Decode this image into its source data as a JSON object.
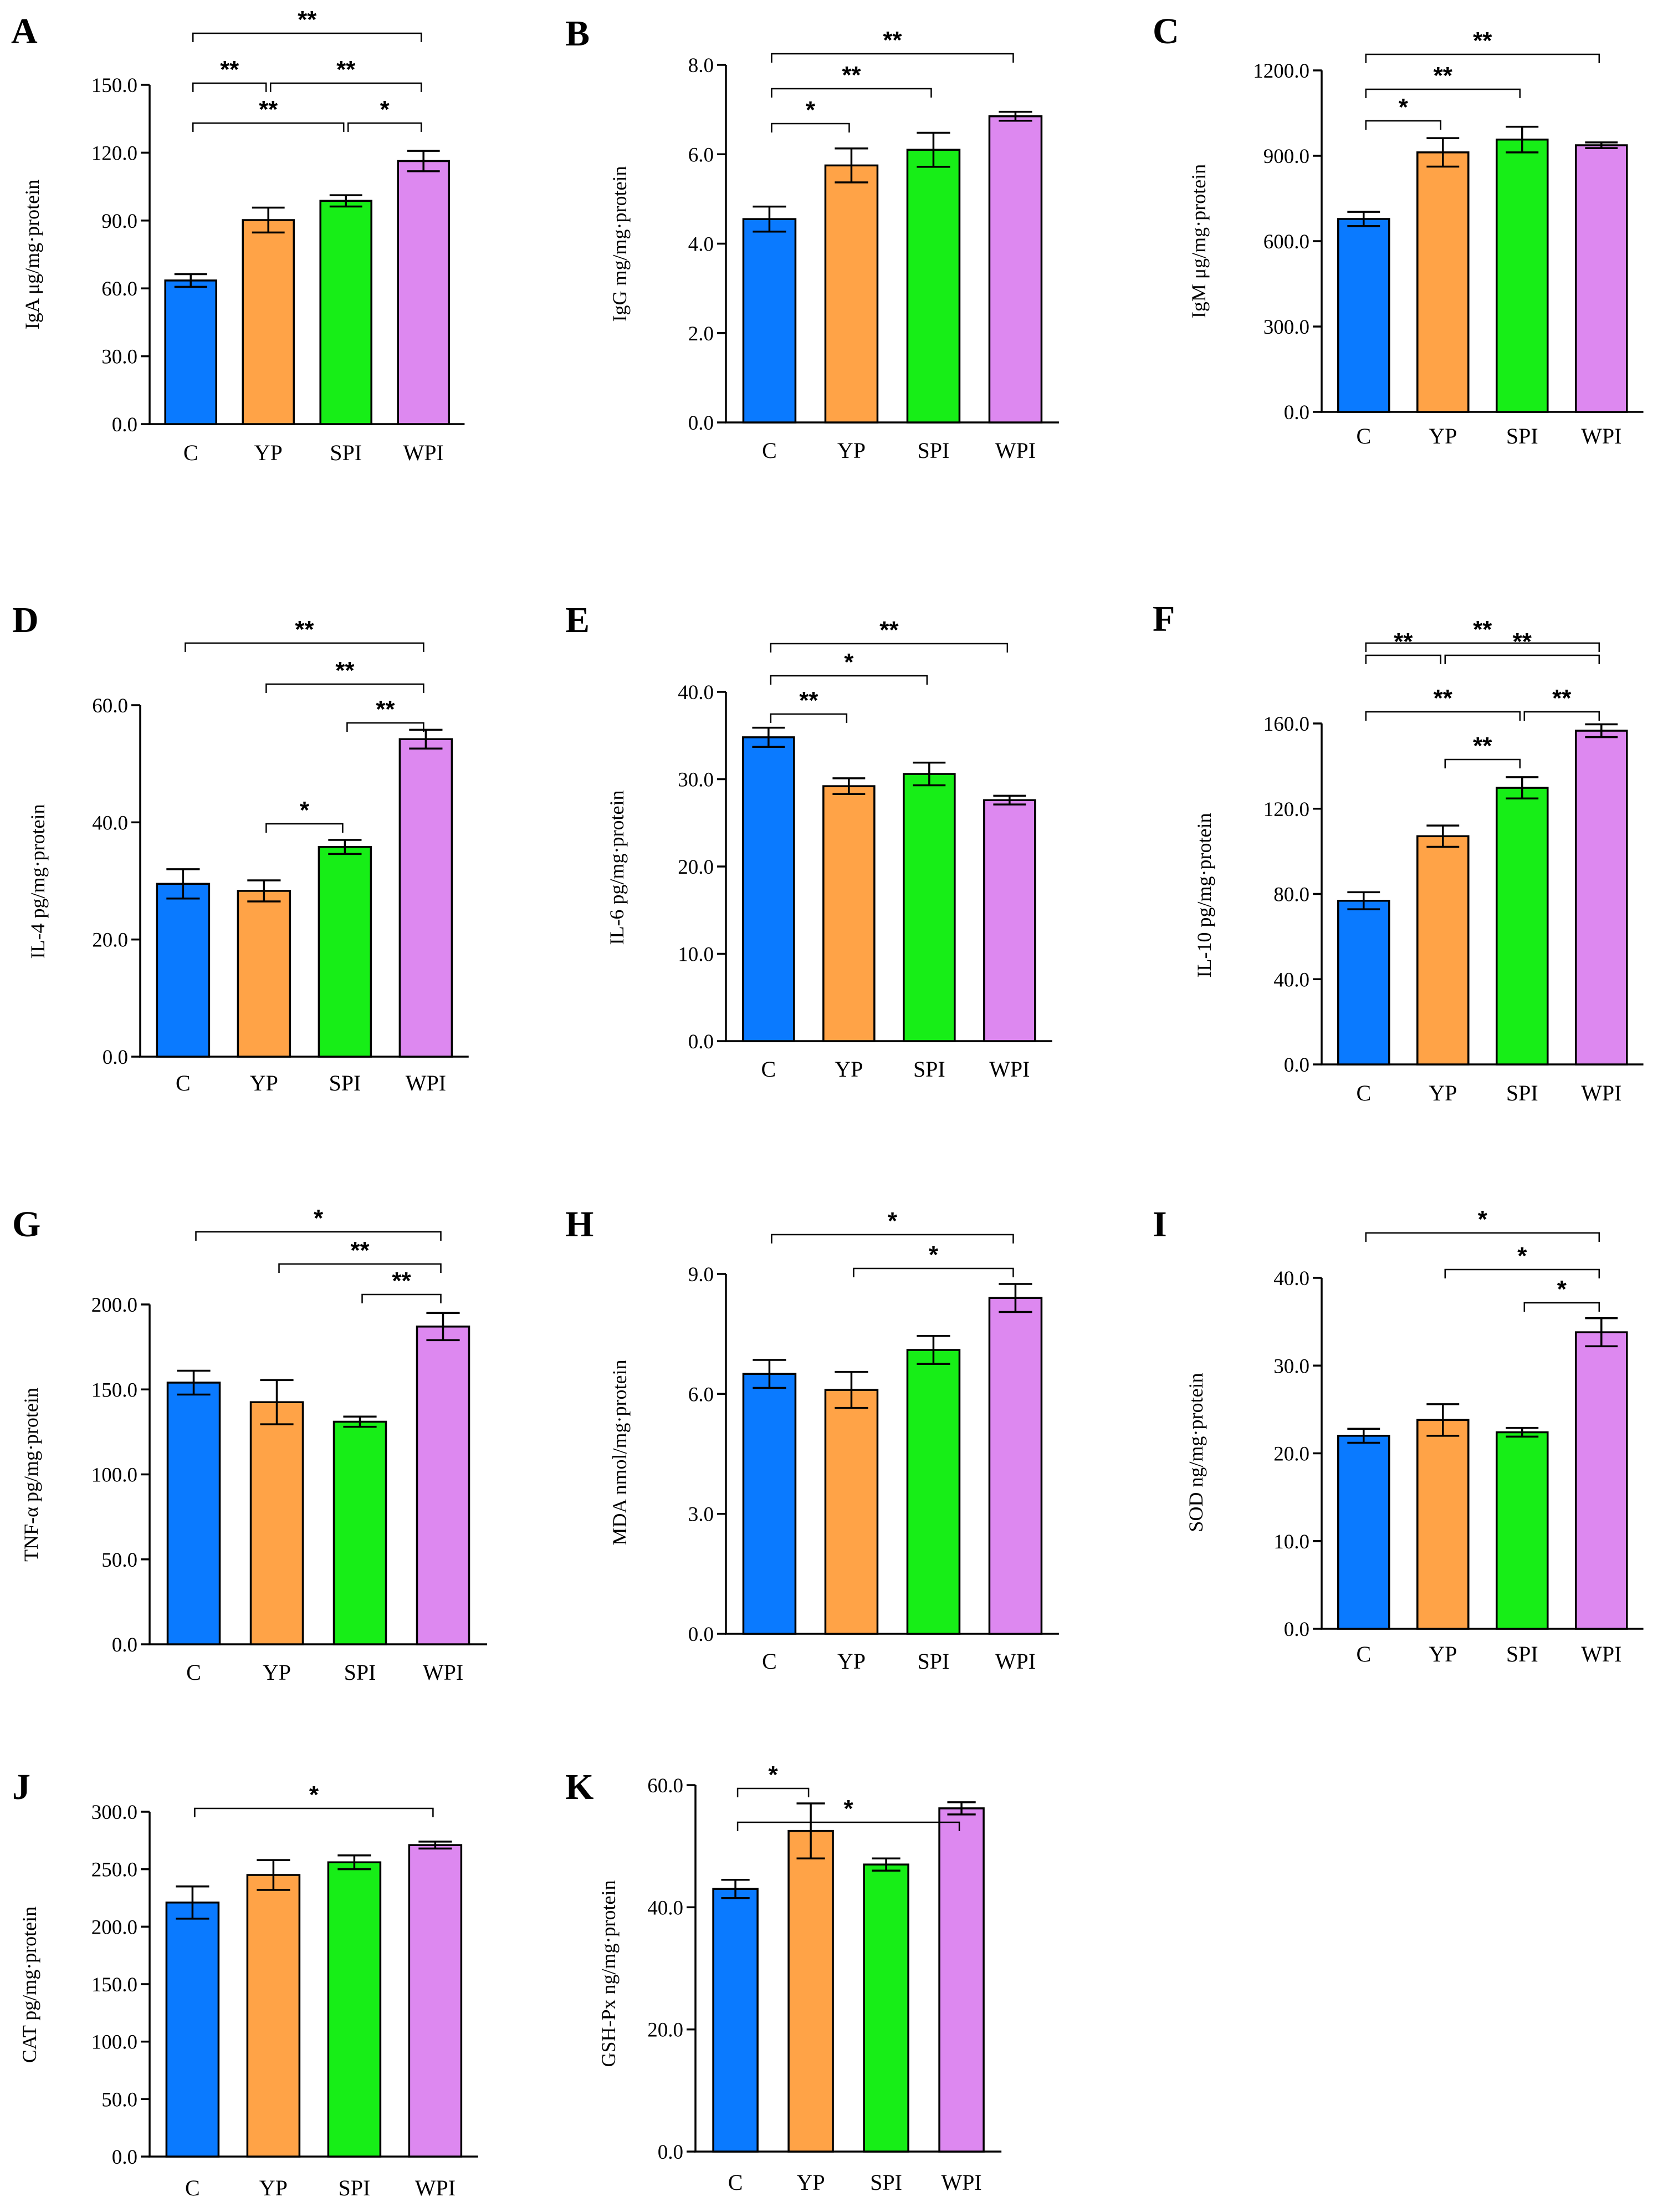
{
  "colors": {
    "C": "#0a7aff",
    "YP": "#ffa347",
    "SPI": "#17ee17",
    "WPI": "#dd88f0",
    "stroke": "#000000"
  },
  "chart_data": [
    {
      "panel": "A",
      "type": "bar",
      "categories": [
        "C",
        "YP",
        "SPI",
        "WPI"
      ],
      "values": [
        63.5,
        90.2,
        98.7,
        116.3
      ],
      "errors": [
        2.8,
        5.5,
        2.5,
        4.5
      ],
      "ylabel": "IgA μg/mg·protein",
      "ylim": [
        0,
        150
      ],
      "ticks": [
        "0.0",
        "30.0",
        "60.0",
        "90.0",
        "120.0",
        "150.0"
      ],
      "significance": [
        {
          "from": 0,
          "to": 3,
          "label": "**"
        },
        {
          "from": 0,
          "to": 1,
          "label": "**"
        },
        {
          "from": 1,
          "to": 3,
          "label": "**"
        },
        {
          "from": 0,
          "to": 2,
          "label": "**"
        },
        {
          "from": 2,
          "to": 3,
          "label": "*"
        }
      ]
    },
    {
      "panel": "B",
      "type": "bar",
      "categories": [
        "C",
        "YP",
        "SPI",
        "WPI"
      ],
      "values": [
        4.55,
        5.75,
        6.1,
        6.85
      ],
      "errors": [
        0.28,
        0.38,
        0.38,
        0.1
      ],
      "ylabel": "IgG mg/mg·protein",
      "ylim": [
        0,
        8
      ],
      "ticks": [
        "0.0",
        "2.0",
        "4.0",
        "6.0",
        "8.0"
      ],
      "significance": [
        {
          "from": 0,
          "to": 3,
          "label": "**"
        },
        {
          "from": 0,
          "to": 2,
          "label": "**"
        },
        {
          "from": 0,
          "to": 1,
          "label": "*"
        }
      ]
    },
    {
      "panel": "C",
      "type": "bar",
      "categories": [
        "C",
        "YP",
        "SPI",
        "WPI"
      ],
      "values": [
        678,
        912,
        957,
        937
      ],
      "errors": [
        25,
        50,
        45,
        10
      ],
      "ylabel": "IgM μg/mg·protein",
      "ylim": [
        0,
        1200
      ],
      "ticks": [
        "0.0",
        "300.0",
        "600.0",
        "900.0",
        "1200.0"
      ],
      "significance": [
        {
          "from": 0,
          "to": 3,
          "label": "**"
        },
        {
          "from": 0,
          "to": 2,
          "label": "**"
        },
        {
          "from": 0,
          "to": 1,
          "label": "*"
        }
      ]
    },
    {
      "panel": "D",
      "type": "bar",
      "categories": [
        "C",
        "YP",
        "SPI",
        "WPI"
      ],
      "values": [
        29.5,
        28.3,
        35.8,
        54.2
      ],
      "errors": [
        2.5,
        1.8,
        1.2,
        1.6
      ],
      "ylabel": "IL-4 pg/mg·protein",
      "ylim": [
        0,
        60
      ],
      "ticks": [
        "0.0",
        "20.0",
        "40.0",
        "60.0"
      ],
      "significance": [
        {
          "from": 0,
          "to": 3,
          "label": "**"
        },
        {
          "from": 1,
          "to": 3,
          "label": "**"
        },
        {
          "from": 2,
          "to": 3,
          "label": "**"
        },
        {
          "from": 1,
          "to": 2,
          "label": "*"
        }
      ]
    },
    {
      "panel": "E",
      "type": "bar",
      "categories": [
        "C",
        "YP",
        "SPI",
        "WPI"
      ],
      "values": [
        34.8,
        29.2,
        30.6,
        27.6
      ],
      "errors": [
        1.1,
        0.9,
        1.3,
        0.5
      ],
      "ylabel": "IL-6 pg/mg·protein",
      "ylim": [
        0,
        40
      ],
      "ticks": [
        "0.0",
        "10.0",
        "20.0",
        "30.0",
        "40.0"
      ],
      "significance": [
        {
          "from": 0,
          "to": 3,
          "label": "**"
        },
        {
          "from": 0,
          "to": 2,
          "label": "*"
        },
        {
          "from": 0,
          "to": 1,
          "label": "**"
        }
      ]
    },
    {
      "panel": "F",
      "type": "bar",
      "categories": [
        "C",
        "YP",
        "SPI",
        "WPI"
      ],
      "values": [
        76.8,
        107.1,
        129.8,
        156.6
      ],
      "errors": [
        4.0,
        5.0,
        5.0,
        3.0
      ],
      "ylabel": "IL-10 pg/mg·protein",
      "ylim": [
        0,
        160
      ],
      "ticks": [
        "0.0",
        "40.0",
        "80.0",
        "120.0",
        "160.0"
      ],
      "significance": [
        {
          "from": 0,
          "to": 3,
          "label": "**"
        },
        {
          "from": 0,
          "to": 1,
          "label": "**"
        },
        {
          "from": 1,
          "to": 3,
          "label": "**"
        },
        {
          "from": 0,
          "to": 2,
          "label": "**"
        },
        {
          "from": 2,
          "to": 3,
          "label": "**"
        },
        {
          "from": 1,
          "to": 2,
          "label": "**"
        }
      ]
    },
    {
      "panel": "G",
      "type": "bar",
      "categories": [
        "C",
        "YP",
        "SPI",
        "WPI"
      ],
      "values": [
        154,
        142.5,
        131,
        187
      ],
      "errors": [
        7,
        13,
        3,
        8
      ],
      "ylabel": "TNF-α pg/mg·protein",
      "ylim": [
        0,
        200
      ],
      "ticks": [
        "0.0",
        "50.0",
        "100.0",
        "150.0",
        "200.0"
      ],
      "significance": [
        {
          "from": 0,
          "to": 3,
          "label": "*"
        },
        {
          "from": 1,
          "to": 3,
          "label": "**"
        },
        {
          "from": 2,
          "to": 3,
          "label": "**"
        }
      ]
    },
    {
      "panel": "H",
      "type": "bar",
      "categories": [
        "C",
        "YP",
        "SPI",
        "WPI"
      ],
      "values": [
        6.5,
        6.1,
        7.1,
        8.4
      ],
      "errors": [
        0.35,
        0.45,
        0.35,
        0.35
      ],
      "ylabel": "MDA nmol/mg·protein",
      "ylim": [
        0,
        9
      ],
      "ticks": [
        "0.0",
        "3.0",
        "6.0",
        "9.0"
      ],
      "significance": [
        {
          "from": 0,
          "to": 3,
          "label": "*"
        },
        {
          "from": 1,
          "to": 3,
          "label": "*"
        }
      ]
    },
    {
      "panel": "I",
      "type": "bar",
      "categories": [
        "C",
        "YP",
        "SPI",
        "WPI"
      ],
      "values": [
        22.0,
        23.8,
        22.4,
        33.8
      ],
      "errors": [
        0.8,
        1.8,
        0.5,
        1.6
      ],
      "ylabel": "SOD ng/mg·protein",
      "ylim": [
        0,
        40
      ],
      "ticks": [
        "0.0",
        "10.0",
        "20.0",
        "30.0",
        "40.0"
      ],
      "significance": [
        {
          "from": 0,
          "to": 3,
          "label": "*"
        },
        {
          "from": 1,
          "to": 3,
          "label": "*"
        },
        {
          "from": 2,
          "to": 3,
          "label": "*"
        }
      ]
    },
    {
      "panel": "J",
      "type": "bar",
      "categories": [
        "C",
        "YP",
        "SPI",
        "WPI"
      ],
      "values": [
        221,
        245,
        256,
        271
      ],
      "errors": [
        14,
        13,
        6,
        3
      ],
      "ylabel": "CAT pg/mg·protein",
      "ylim": [
        0,
        300
      ],
      "ticks": [
        "0.0",
        "50.0",
        "100.0",
        "150.0",
        "200.0",
        "250.0",
        "300.0"
      ],
      "significance": [
        {
          "from": 0,
          "to": 3,
          "label": "*"
        }
      ]
    },
    {
      "panel": "K",
      "type": "bar",
      "categories": [
        "C",
        "YP",
        "SPI",
        "WPI"
      ],
      "values": [
        43.0,
        52.5,
        47.0,
        56.2
      ],
      "errors": [
        1.5,
        4.5,
        1.0,
        1.0
      ],
      "ylabel": "GSH-Px ng/mg·protein",
      "ylim": [
        0,
        60
      ],
      "ticks": [
        "0.0",
        "20.0",
        "40.0",
        "60.0"
      ],
      "significance": [
        {
          "from": 0,
          "to": 1,
          "label": "*"
        },
        {
          "from": 0,
          "to": 3,
          "label": "*"
        }
      ]
    }
  ]
}
